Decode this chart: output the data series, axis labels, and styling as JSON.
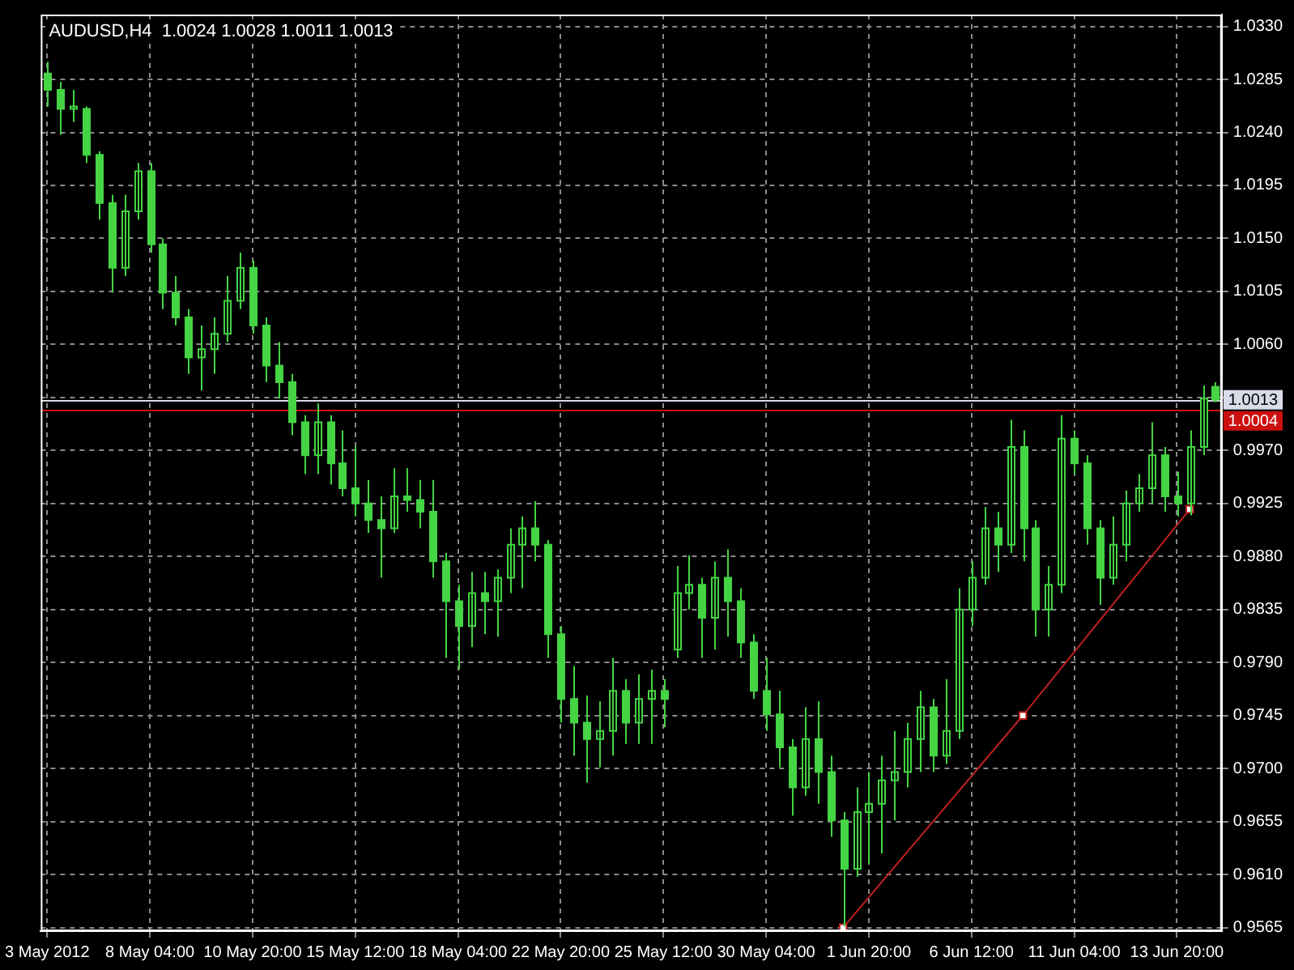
{
  "chart_data": {
    "type": "candlestick",
    "title": "AUDUSD,H4  1.0024 1.0028 1.0011 1.0013",
    "categories": [
      "3 May 2012",
      null,
      null,
      null,
      null,
      null,
      null,
      null,
      "8 May 04:00",
      null,
      null,
      null,
      null,
      null,
      null,
      null,
      "10 May 20:00",
      null,
      null,
      null,
      null,
      null,
      null,
      null,
      "15 May 12:00",
      null,
      null,
      null,
      null,
      null,
      null,
      null,
      "18 May 04:00",
      null,
      null,
      null,
      null,
      null,
      null,
      null,
      "22 May 20:00",
      null,
      null,
      null,
      null,
      null,
      null,
      null,
      "25 May 12:00",
      null,
      null,
      null,
      null,
      null,
      null,
      null,
      "30 May 04:00",
      null,
      null,
      null,
      null,
      null,
      null,
      null,
      "1 Jun 20:00",
      null,
      null,
      null,
      null,
      null,
      null,
      null,
      "6 Jun 12:00",
      null,
      null,
      null,
      null,
      null,
      null,
      null,
      "11 Jun 04:00",
      null,
      null,
      null,
      null,
      null,
      null,
      null,
      "13 Jun 20:00",
      null,
      null,
      null
    ],
    "ohlc": [
      [
        1.029,
        1.03,
        1.0262,
        1.0276
      ],
      [
        1.0276,
        1.0283,
        1.0238,
        1.026
      ],
      [
        1.026,
        1.0276,
        1.0249,
        1.0262
      ],
      [
        1.026,
        1.0262,
        1.0214,
        1.0221
      ],
      [
        1.0221,
        1.0224,
        1.0166,
        1.018
      ],
      [
        1.018,
        1.0187,
        1.0104,
        1.0125
      ],
      [
        1.0125,
        1.0187,
        1.0118,
        1.0173
      ],
      [
        1.0173,
        1.0214,
        1.0166,
        1.0207
      ],
      [
        1.0207,
        1.0214,
        1.0138,
        1.0145
      ],
      [
        1.0145,
        1.015,
        1.009,
        1.0104
      ],
      [
        1.0104,
        1.0118,
        1.0076,
        1.0083
      ],
      [
        1.0083,
        1.009,
        1.0035,
        1.0049
      ],
      [
        1.0049,
        1.0076,
        1.0021,
        1.0056
      ],
      [
        1.0056,
        1.0083,
        1.0035,
        1.0069
      ],
      [
        1.0069,
        1.0118,
        1.0062,
        1.0097
      ],
      [
        1.0097,
        1.0138,
        1.009,
        1.0125
      ],
      [
        1.0125,
        1.0131,
        1.0069,
        1.0076
      ],
      [
        1.0076,
        1.0083,
        1.0028,
        1.0042
      ],
      [
        1.0042,
        1.0062,
        1.0014,
        1.0028
      ],
      [
        1.0028,
        1.0035,
        0.9983,
        0.9994
      ],
      [
        0.9994,
        1.0,
        0.995,
        0.9966
      ],
      [
        0.9966,
        1.001,
        0.995,
        0.9994
      ],
      [
        0.9994,
        1.0,
        0.9941,
        0.9959
      ],
      [
        0.9959,
        0.9987,
        0.9931,
        0.9938
      ],
      [
        0.9938,
        0.9973,
        0.9914,
        0.9925
      ],
      [
        0.9925,
        0.9945,
        0.99,
        0.9911
      ],
      [
        0.9911,
        0.9931,
        0.9862,
        0.9904
      ],
      [
        0.9904,
        0.9955,
        0.99,
        0.9931
      ],
      [
        0.9931,
        0.9955,
        0.9918,
        0.9928
      ],
      [
        0.9928,
        0.9945,
        0.9904,
        0.9918
      ],
      [
        0.9918,
        0.9945,
        0.9862,
        0.9876
      ],
      [
        0.9876,
        0.9883,
        0.9794,
        0.9842
      ],
      [
        0.9842,
        0.9856,
        0.9784,
        0.9821
      ],
      [
        0.9821,
        0.9867,
        0.9803,
        0.9849
      ],
      [
        0.9849,
        0.9867,
        0.9814,
        0.9842
      ],
      [
        0.9842,
        0.9869,
        0.9812,
        0.9862
      ],
      [
        0.9862,
        0.9904,
        0.9849,
        0.989
      ],
      [
        0.989,
        0.9914,
        0.9853,
        0.9904
      ],
      [
        0.9904,
        0.9927,
        0.9876,
        0.989
      ],
      [
        0.989,
        0.9894,
        0.9794,
        0.9814
      ],
      [
        0.9814,
        0.9821,
        0.9739,
        0.9759
      ],
      [
        0.9759,
        0.9787,
        0.9711,
        0.9739
      ],
      [
        0.9739,
        0.9762,
        0.9688,
        0.9725
      ],
      [
        0.9725,
        0.9757,
        0.9701,
        0.9732
      ],
      [
        0.9732,
        0.9794,
        0.9711,
        0.9766
      ],
      [
        0.9766,
        0.9776,
        0.9721,
        0.9739
      ],
      [
        0.9739,
        0.978,
        0.9721,
        0.9759
      ],
      [
        0.9759,
        0.9784,
        0.9721,
        0.9766
      ],
      [
        0.9766,
        0.9776,
        0.9735,
        0.9759
      ],
      [
        0.9801,
        0.9872,
        0.9794,
        0.9849
      ],
      [
        0.9849,
        0.9881,
        0.9835,
        0.9856
      ],
      [
        0.9856,
        0.9862,
        0.9794,
        0.9828
      ],
      [
        0.9828,
        0.9876,
        0.9801,
        0.9862
      ],
      [
        0.9862,
        0.9886,
        0.9812,
        0.9842
      ],
      [
        0.9842,
        0.9853,
        0.9794,
        0.9807
      ],
      [
        0.9807,
        0.9814,
        0.9759,
        0.9766
      ],
      [
        0.9766,
        0.9794,
        0.9732,
        0.9746
      ],
      [
        0.9746,
        0.9766,
        0.9701,
        0.9718
      ],
      [
        0.9718,
        0.9725,
        0.966,
        0.9684
      ],
      [
        0.9684,
        0.9752,
        0.9677,
        0.9725
      ],
      [
        0.9725,
        0.9757,
        0.967,
        0.9697
      ],
      [
        0.9697,
        0.9711,
        0.9642,
        0.9656
      ],
      [
        0.9656,
        0.9663,
        0.9566,
        0.9615
      ],
      [
        0.9615,
        0.9684,
        0.9608,
        0.9663
      ],
      [
        0.9663,
        0.9697,
        0.9619,
        0.967
      ],
      [
        0.967,
        0.9711,
        0.9628,
        0.969
      ],
      [
        0.969,
        0.9732,
        0.9656,
        0.9697
      ],
      [
        0.9697,
        0.9739,
        0.9684,
        0.9725
      ],
      [
        0.9725,
        0.9766,
        0.9697,
        0.9752
      ],
      [
        0.9752,
        0.9759,
        0.9697,
        0.9711
      ],
      [
        0.9711,
        0.9776,
        0.9704,
        0.9732
      ],
      [
        0.9732,
        0.9853,
        0.9725,
        0.9835
      ],
      [
        0.9835,
        0.9876,
        0.9821,
        0.9862
      ],
      [
        0.9862,
        0.9922,
        0.9856,
        0.9904
      ],
      [
        0.9904,
        0.9918,
        0.9867,
        0.989
      ],
      [
        0.989,
        0.9996,
        0.9883,
        0.9973
      ],
      [
        0.9973,
        0.9987,
        0.9876,
        0.9904
      ],
      [
        0.9904,
        0.9911,
        0.9812,
        0.9835
      ],
      [
        0.9835,
        0.9872,
        0.9812,
        0.9856
      ],
      [
        0.9856,
        1.0,
        0.9849,
        0.998
      ],
      [
        0.998,
        0.9987,
        0.995,
        0.9959
      ],
      [
        0.9959,
        0.9966,
        0.989,
        0.9904
      ],
      [
        0.9904,
        0.9911,
        0.9839,
        0.9862
      ],
      [
        0.9862,
        0.9914,
        0.9856,
        0.989
      ],
      [
        0.989,
        0.9936,
        0.9876,
        0.9925
      ],
      [
        0.9925,
        0.995,
        0.9918,
        0.9938
      ],
      [
        0.9938,
        0.9994,
        0.9925,
        0.9966
      ],
      [
        0.9966,
        0.9973,
        0.9918,
        0.9931
      ],
      [
        0.9931,
        0.9952,
        0.9914,
        0.9925
      ],
      [
        0.9925,
        0.9987,
        0.9915,
        0.9973
      ],
      [
        0.9973,
        1.0025,
        0.9966,
        1.0014
      ],
      [
        1.0024,
        1.0028,
        1.0011,
        1.0013
      ]
    ],
    "color": "#44d444",
    "series": [
      {
        "type": "line",
        "color": "#c02020",
        "values": [
          null,
          null,
          null,
          null,
          null,
          null,
          null,
          null,
          null,
          null,
          null,
          null,
          null,
          null,
          null,
          null,
          null,
          null,
          null,
          null,
          null,
          null,
          null,
          null,
          null,
          null,
          null,
          null,
          null,
          null,
          null,
          null,
          null,
          null,
          null,
          null,
          null,
          null,
          null,
          null,
          null,
          null,
          null,
          null,
          null,
          null,
          null,
          null,
          null,
          null,
          null,
          null,
          null,
          null,
          null,
          null,
          null,
          null,
          null,
          null,
          null,
          null,
          0.9565,
          null,
          null,
          null,
          null,
          null,
          null,
          null,
          null,
          null,
          null,
          null,
          null,
          null,
          0.9745,
          null,
          null,
          null,
          null,
          null,
          null,
          null,
          null,
          null,
          null,
          null,
          null,
          0.992,
          null,
          null
        ]
      }
    ],
    "marker": "square",
    "ylim": [
      0.9562,
      1.034
    ],
    "yticks": [
      0.9565,
      {
        "value": 0.961,
        "label": "0.9610"
      },
      0.9655,
      {
        "value": 0.97,
        "label": "0.9700"
      },
      0.9745,
      {
        "value": 0.979,
        "label": "0.9790"
      },
      0.9835,
      {
        "value": 0.988,
        "label": "0.9880"
      },
      0.9925,
      {
        "value": 0.997,
        "label": "0.9970"
      },
      {
        "value": 1.0015,
        "label": null
      },
      {
        "value": 1.006,
        "label": "1.0060"
      },
      1.0105,
      {
        "value": 1.015,
        "label": "1.0150"
      },
      1.0195,
      {
        "value": 1.024,
        "label": "1.0240"
      },
      1.0285,
      {
        "value": 1.033,
        "label": "1.0330"
      }
    ],
    "grid": true,
    "ref_lines": [
      {
        "axis": "y",
        "value": 1.0013,
        "label": "1.0013",
        "color": "#d8dce8"
      },
      {
        "axis": "y",
        "value": 1.0004,
        "label": "1.0004",
        "color": "#cc1010"
      }
    ]
  }
}
